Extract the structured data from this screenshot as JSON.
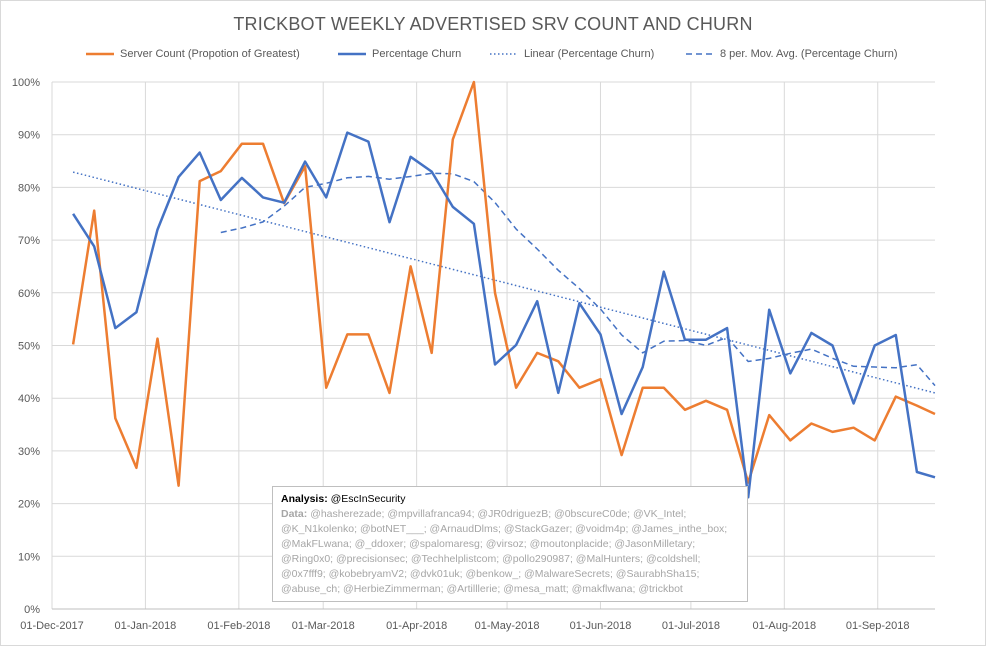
{
  "chart_data": {
    "type": "line",
    "title": "TRICKBOT WEEKLY ADVERTISED SRV COUNT AND CHURN",
    "xlabel": "",
    "ylabel": "",
    "xlim": [
      "2017-12-01",
      "2018-09-20"
    ],
    "ylim": [
      0,
      100
    ],
    "y_ticks": [
      0,
      10,
      20,
      30,
      40,
      50,
      60,
      70,
      80,
      90,
      100
    ],
    "y_tick_labels": [
      "0%",
      "10%",
      "20%",
      "30%",
      "40%",
      "50%",
      "60%",
      "70%",
      "80%",
      "90%",
      "100%"
    ],
    "x_ticks": [
      "2017-12-01",
      "2018-01-01",
      "2018-02-01",
      "2018-03-01",
      "2018-04-01",
      "2018-05-01",
      "2018-06-01",
      "2018-07-01",
      "2018-08-01",
      "2018-09-01"
    ],
    "x_tick_labels": [
      "01-Dec-2017",
      "01-Jan-2018",
      "01-Feb-2018",
      "01-Mar-2018",
      "01-Apr-2018",
      "01-May-2018",
      "01-Jun-2018",
      "01-Jul-2018",
      "01-Aug-2018",
      "01-Sep-2018"
    ],
    "grid": "horizontal and vertical gridlines",
    "legend_position": "top",
    "dates": [
      "2017-12-08",
      "2017-12-15",
      "2017-12-22",
      "2017-12-29",
      "2018-01-05",
      "2018-01-12",
      "2018-01-19",
      "2018-01-26",
      "2018-02-02",
      "2018-02-09",
      "2018-02-16",
      "2018-02-23",
      "2018-03-02",
      "2018-03-09",
      "2018-03-16",
      "2018-03-23",
      "2018-03-30",
      "2018-04-06",
      "2018-04-13",
      "2018-04-20",
      "2018-04-27",
      "2018-05-04",
      "2018-05-11",
      "2018-05-18",
      "2018-05-25",
      "2018-06-01",
      "2018-06-08",
      "2018-06-15",
      "2018-06-22",
      "2018-06-29",
      "2018-07-06",
      "2018-07-13",
      "2018-07-20",
      "2018-07-27",
      "2018-08-03",
      "2018-08-10",
      "2018-08-17",
      "2018-08-24",
      "2018-08-31",
      "2018-09-07",
      "2018-09-14",
      "2018-09-20"
    ],
    "series": [
      {
        "name": "Server Count (Propotion of Greatest)",
        "color": "#ed7d31",
        "style": "solid",
        "values": [
          50.2,
          75.6,
          36.2,
          26.8,
          51.3,
          23.4,
          81.2,
          83.1,
          88.3,
          88.3,
          77.0,
          84.0,
          42.0,
          52.1,
          52.1,
          41.0,
          65.0,
          48.6,
          89.1,
          100.0,
          60.0,
          42.0,
          48.6,
          47.0,
          42.0,
          43.6,
          29.2,
          42.0,
          42.0,
          37.8,
          39.5,
          37.8,
          24.0,
          36.8,
          32.0,
          35.2,
          33.6,
          34.4,
          32.0,
          40.3,
          38.6,
          37.0
        ]
      },
      {
        "name": "Percentage Churn",
        "color": "#4472c4",
        "style": "solid",
        "values": [
          75.0,
          68.8,
          53.3,
          56.3,
          72.0,
          82.0,
          86.6,
          77.6,
          81.8,
          78.1,
          77.1,
          84.9,
          78.1,
          90.4,
          88.7,
          73.4,
          85.8,
          83.0,
          76.3,
          73.1,
          46.4,
          50.1,
          58.4,
          41.0,
          58.0,
          52.1,
          37.0,
          45.9,
          64.0,
          51.1,
          51.1,
          53.3,
          21.2,
          56.8,
          44.7,
          52.4,
          50.0,
          39.0,
          50.0,
          52.0,
          26.0,
          25.0
        ]
      },
      {
        "name": "Linear (Percentage Churn)",
        "color": "#4472c4",
        "style": "dotted",
        "trend": "linear",
        "start": 82.9,
        "end": 41.0
      },
      {
        "name": "8 per. Mov. Avg. (Percentage Churn)",
        "color": "#4472c4",
        "style": "dashed",
        "trend": "moving_average",
        "period": 8
      }
    ]
  },
  "analysis": {
    "label": "Analysis:",
    "handle": "@EscInSecurity",
    "data_label": "Data:",
    "data_text": "@hasherezade; @mpvillafranca94; @JR0driguezB; @0bscureC0de; @VK_Intel; @K_N1kolenko; @botNET___; @ArnaudDlms; @StackGazer; @voidm4p; @James_inthe_box; @MakFLwana; @_ddoxer; @spalomaresg; @virsoz; @moutonplacide; @JasonMilletary; @Ring0x0; @precisionsec; @Techhelplistcom; @pollo290987; @MalHunters; @coldshell; @0x7fff9; @kobebryamV2; @dvk01uk; @benkow_; @MalwareSecrets; @SaurabhSha15; @abuse_ch; @HerbieZimmerman; @Artilllerie; @mesa_matt; @makflwana; @trickbot"
  }
}
